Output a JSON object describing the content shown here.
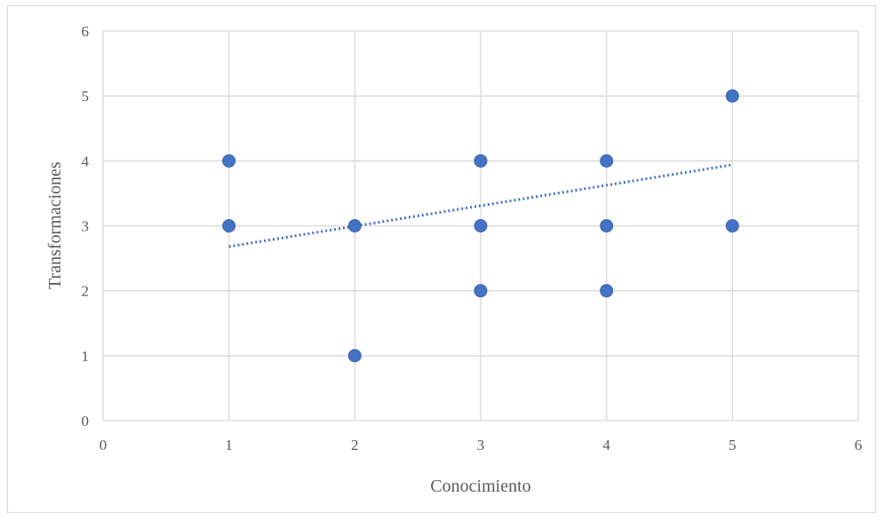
{
  "chart_data": {
    "type": "scatter",
    "title": "",
    "xlabel": "Conocimiento",
    "ylabel": "Transformaciones",
    "xlim": [
      0,
      6
    ],
    "ylim": [
      0,
      6
    ],
    "xticks": [
      0,
      1,
      2,
      3,
      4,
      5,
      6
    ],
    "yticks": [
      0,
      1,
      2,
      3,
      4,
      5,
      6
    ],
    "grid": true,
    "legend": "none",
    "series": [
      {
        "color": "#4472c4",
        "points": [
          {
            "x": 1,
            "y": 4
          },
          {
            "x": 1,
            "y": 3
          },
          {
            "x": 2,
            "y": 3
          },
          {
            "x": 2,
            "y": 1
          },
          {
            "x": 3,
            "y": 4
          },
          {
            "x": 3,
            "y": 3
          },
          {
            "x": 3,
            "y": 2
          },
          {
            "x": 4,
            "y": 4
          },
          {
            "x": 4,
            "y": 3
          },
          {
            "x": 4,
            "y": 2
          },
          {
            "x": 5,
            "y": 5
          },
          {
            "x": 5,
            "y": 3
          }
        ]
      }
    ],
    "trendline": {
      "type": "linear",
      "style": "dotted",
      "color": "#4472c4",
      "from": {
        "x": 1,
        "y": 2.68
      },
      "to": {
        "x": 5,
        "y": 3.94
      }
    }
  }
}
